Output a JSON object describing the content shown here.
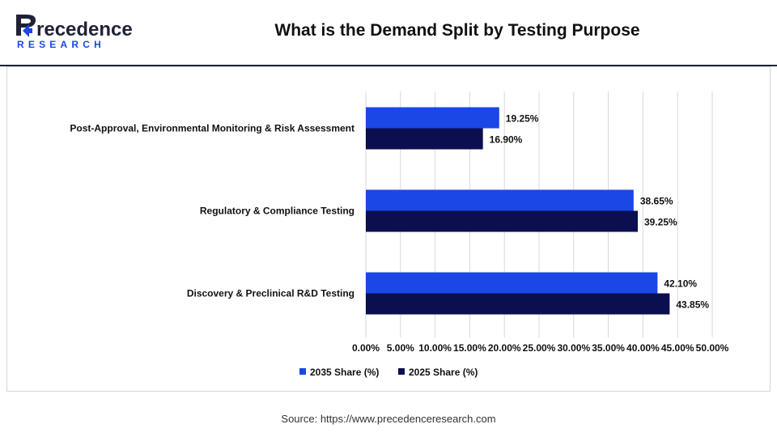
{
  "header": {
    "title": "What is the Demand Split by Testing Purpose",
    "logo_text_top": "Precedence",
    "logo_text_bottom": "RESEARCH"
  },
  "footer": {
    "source": "Source: https://www.precedenceresearch.com"
  },
  "chart_data": {
    "type": "bar",
    "orientation": "horizontal",
    "title": "What is the Demand Split by Testing Purpose",
    "xlabel": "",
    "ylabel": "",
    "categories": [
      "Post-Approval, Environmental Monitoring & Risk Assessment",
      "Regulatory & Compliance Testing",
      "Discovery & Preclinical R&D Testing"
    ],
    "series": [
      {
        "name": "2035 Share (%)",
        "values": [
          19.25,
          38.65,
          42.1
        ],
        "labels": [
          "19.25%",
          "38.65%",
          "42.10%"
        ],
        "color": "#1a47e5"
      },
      {
        "name": "2025 Share (%)",
        "values": [
          16.9,
          39.25,
          43.85
        ],
        "labels": [
          "16.90%",
          "39.25%",
          "43.85%"
        ],
        "color": "#0b0e4f"
      }
    ],
    "xlim": [
      0,
      50
    ],
    "xticks": [
      "0.00%",
      "5.00%",
      "10.00%",
      "15.00%",
      "20.00%",
      "25.00%",
      "30.00%",
      "35.00%",
      "40.00%",
      "45.00%",
      "50.00%"
    ],
    "grid": true,
    "legend": "bottom"
  },
  "colors": {
    "grid": "#d9d9d9",
    "header_rule": "#1f2237",
    "logo_dark": "#1f2237",
    "logo_blue": "#1a47e5"
  }
}
